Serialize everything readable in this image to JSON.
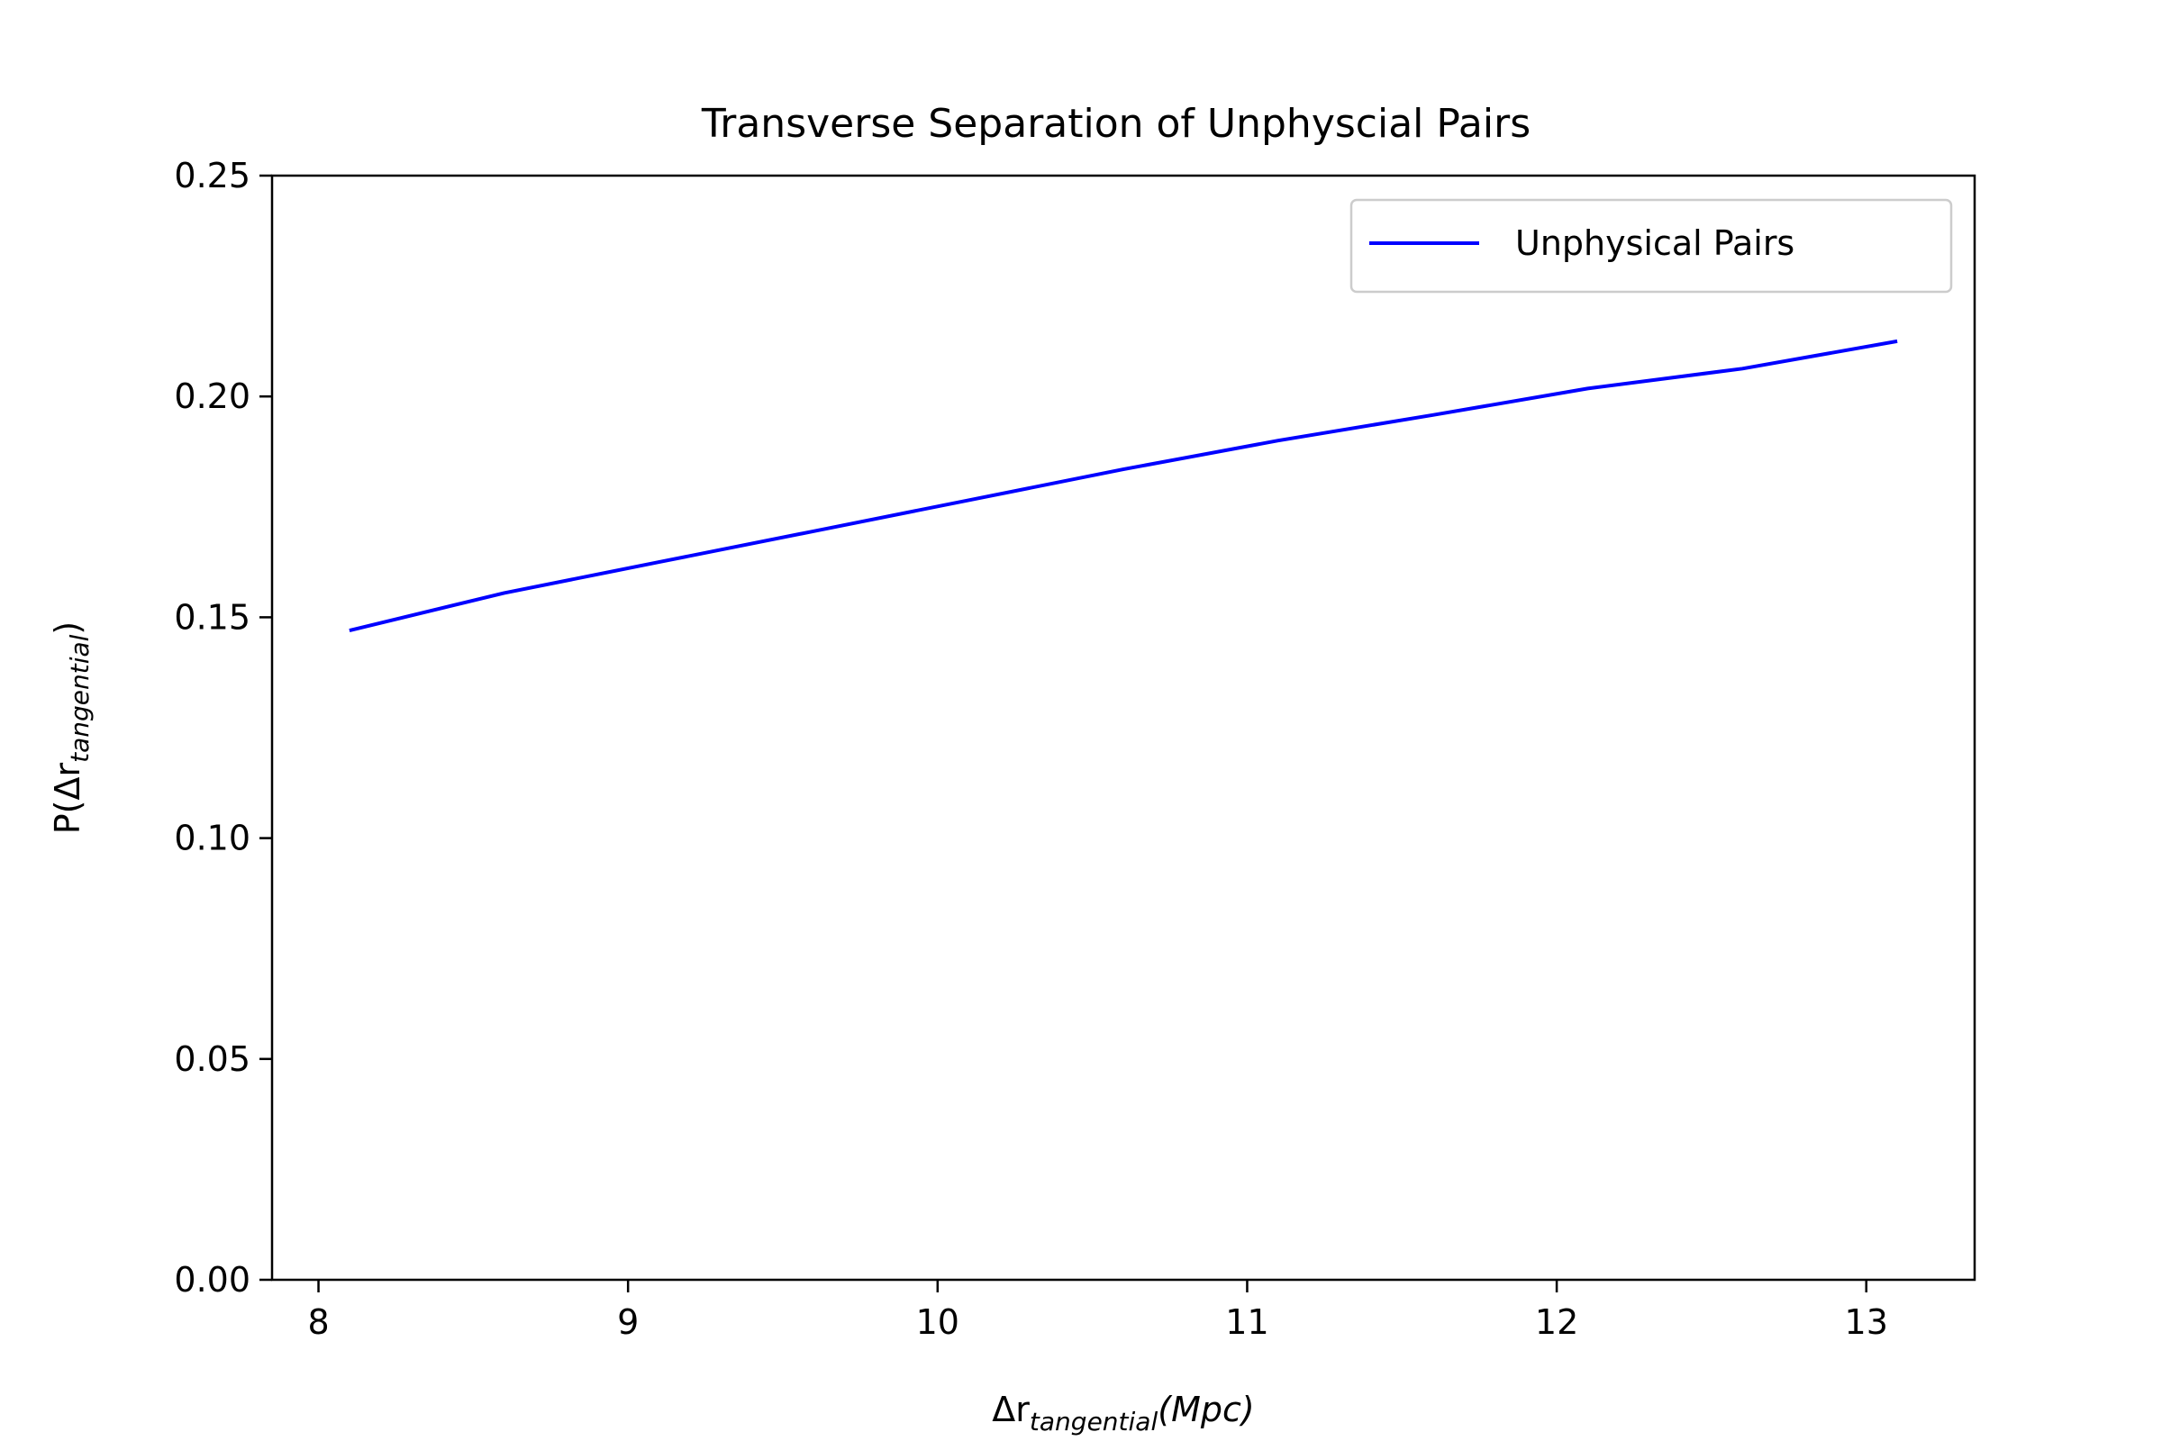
{
  "chart_data": {
    "type": "line",
    "title": "Transverse Separation of Unphyscial Pairs",
    "xlabel": {
      "main": "Δr",
      "sub": "tangential",
      "suffix": "(Mpc)"
    },
    "ylabel": {
      "prefix": "P(Δr",
      "sub": "tangential",
      "suffix": ")"
    },
    "xlim": [
      7.85,
      13.35
    ],
    "ylim": [
      0,
      0.25
    ],
    "xticks": [
      8,
      9,
      10,
      11,
      12,
      13
    ],
    "yticks": [
      0.0,
      0.05,
      0.1,
      0.15,
      0.2,
      0.25
    ],
    "grid": false,
    "legend": {
      "position": "top-right"
    },
    "series": [
      {
        "name": "Unphysical Pairs",
        "color": "#0000ff",
        "x": [
          8.1,
          8.6,
          9.1,
          9.6,
          10.1,
          10.6,
          11.1,
          11.6,
          12.1,
          12.6,
          13.1
        ],
        "y": [
          0.147,
          0.1555,
          0.1625,
          0.1695,
          0.1765,
          0.1835,
          0.19,
          0.1958,
          0.2018,
          0.2063,
          0.2125
        ]
      }
    ]
  }
}
